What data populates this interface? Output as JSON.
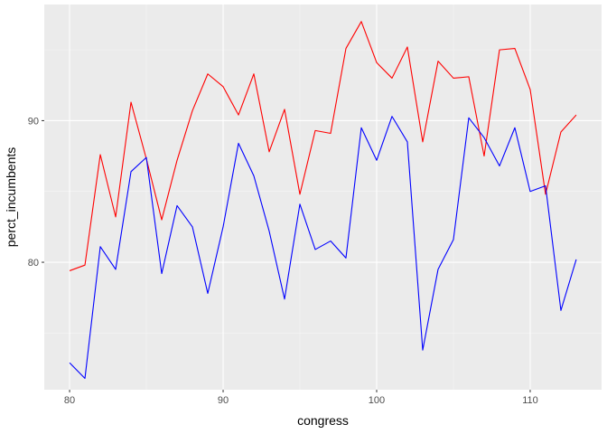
{
  "chart_data": {
    "type": "line",
    "xlabel": "congress",
    "ylabel": "perct_incumbents",
    "xlim": [
      78.35,
      114.65
    ],
    "ylim": [
      71.0,
      98.2
    ],
    "x_ticks": [
      80,
      90,
      100,
      110
    ],
    "x_minor_ticks": [
      85,
      95,
      105
    ],
    "y_ticks": [
      80,
      90
    ],
    "y_minor_ticks": [
      75,
      85,
      95
    ],
    "x_tick_labels": [
      "80",
      "90",
      "100",
      "110"
    ],
    "y_tick_labels": [
      "80",
      "90"
    ],
    "grid": true,
    "legend": "none",
    "x": [
      80,
      81,
      82,
      83,
      84,
      85,
      86,
      87,
      88,
      89,
      90,
      91,
      92,
      93,
      94,
      95,
      96,
      97,
      98,
      99,
      100,
      101,
      102,
      103,
      104,
      105,
      106,
      107,
      108,
      109,
      110,
      111,
      112,
      113
    ],
    "series": [
      {
        "color": "#ff0000",
        "values": [
          79.4,
          79.8,
          87.6,
          83.2,
          91.3,
          87.3,
          83.0,
          87.2,
          90.7,
          93.3,
          92.4,
          90.4,
          93.3,
          87.8,
          90.8,
          84.8,
          89.3,
          89.1,
          95.1,
          97.0,
          94.1,
          93.0,
          95.2,
          88.5,
          94.2,
          93.0,
          93.1,
          87.5,
          95.0,
          95.1,
          92.2,
          84.8,
          89.2,
          90.4
        ]
      },
      {
        "color": "#0000ff",
        "values": [
          72.9,
          71.8,
          81.1,
          79.5,
          86.4,
          87.4,
          79.2,
          84.0,
          82.5,
          77.8,
          82.5,
          88.4,
          86.1,
          82.2,
          77.4,
          84.1,
          80.9,
          81.5,
          80.3,
          89.5,
          87.2,
          90.3,
          88.5,
          73.8,
          79.5,
          81.6,
          90.2,
          88.8,
          86.8,
          89.5,
          85.0,
          85.4,
          76.6,
          80.2
        ]
      }
    ],
    "colors": {
      "panel_background": "#ebebeb",
      "grid_major": "#ffffff",
      "grid_minor": "#f5f5f5",
      "tick_label": "#4d4d4d",
      "tick_mark": "#333333"
    }
  }
}
